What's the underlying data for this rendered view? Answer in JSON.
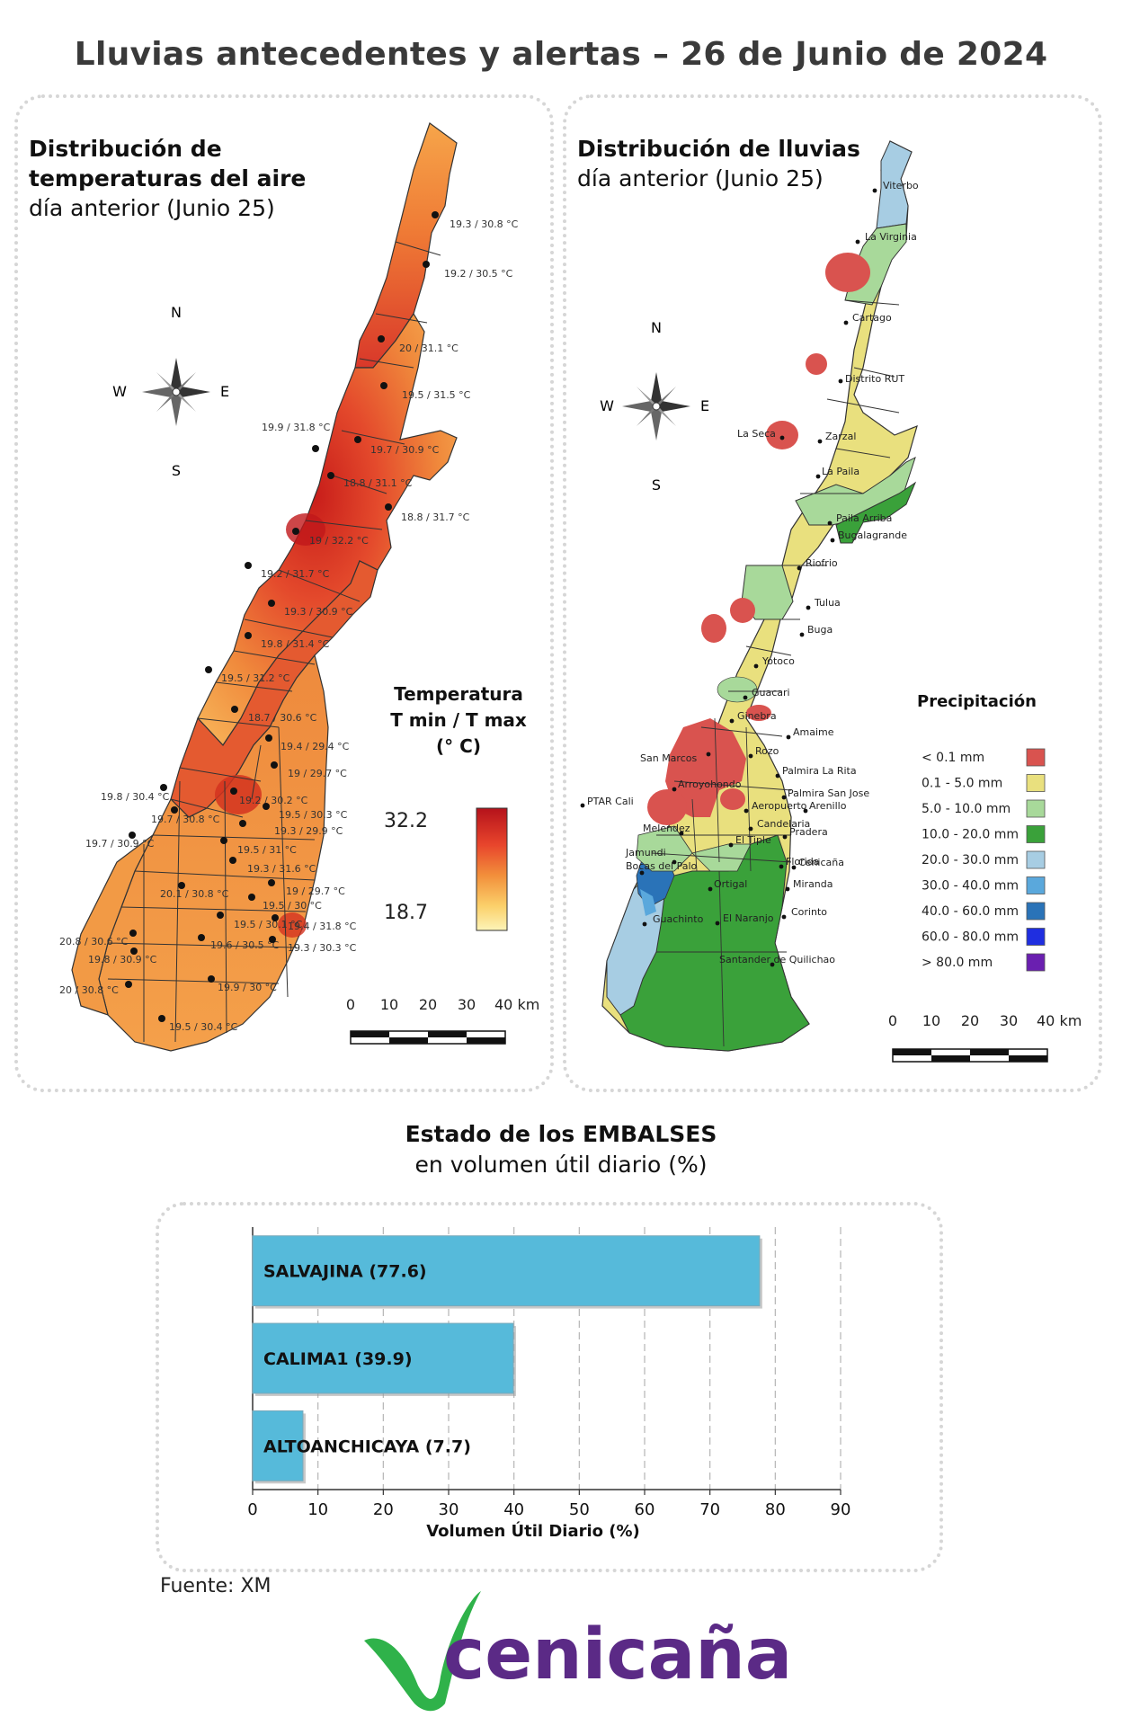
{
  "title": "Lluvias antecedentes y alertas – 26 de Junio de 2024",
  "temp_panel": {
    "title_bold_1": "Distribución de",
    "title_bold_2": "temperaturas del aire",
    "subtitle": "día anterior (Junio 25)",
    "legend_title_1": "Temperatura",
    "legend_title_2": "T min / T max",
    "legend_title_3": "(° C)",
    "legend_max": "32.2",
    "legend_min": "18.7",
    "gradient_colors": [
      "#b5121b",
      "#e8452c",
      "#f28f3b",
      "#fbd06a",
      "#fdf4b8"
    ],
    "scale_labels": [
      "0",
      "10",
      "20",
      "30",
      "40 km"
    ],
    "stations": [
      "19.3 / 30.8 °C",
      "19.2 / 30.5 °C",
      "20 / 31.1 °C",
      "19.5 / 31.5 °C",
      "19.9 / 31.8 °C",
      "19.7 / 30.9 °C",
      "18.8 / 31.1 °C",
      "18.8 / 31.7 °C",
      "19 / 32.2 °C",
      "19.2 / 31.7 °C",
      "19.3 / 30.9 °C",
      "19.8 / 31.4 °C",
      "19.5 / 31.2 °C",
      "18.7 / 30.6 °C",
      "19.4 / 29.4 °C",
      "19 / 29.7 °C",
      "19.8 / 30.4 °C",
      "19.2 / 30.2 °C",
      "19.5 / 30.3 °C",
      "19.7 / 30.8 °C",
      "19.3 / 29.9 °C",
      "19.7 / 30.9 °C",
      "19.5 / 31 °C",
      "19.3 / 31.6 °C",
      "19 / 29.7 °C",
      "20.1 / 30.8 °C",
      "19.5 / 30 °C",
      "19.5 / 30.1 °C",
      "19.4 / 31.8 °C",
      "20.8 / 30.6 °C",
      "19.6 / 30.5 °C",
      "19.3 / 30.3 °C",
      "19.8 / 30.9 °C",
      "20 / 30.8 °C",
      "19.9 / 30 °C",
      "19.5 / 30.4 °C"
    ],
    "compass": {
      "n": "N",
      "s": "S",
      "e": "E",
      "w": "W"
    }
  },
  "rain_panel": {
    "title_bold": "Distribución de lluvias",
    "subtitle": "día anterior (Junio 25)",
    "legend_title": "Precipitación",
    "legend": [
      {
        "label": "< 0.1 mm",
        "color": "#d9534f"
      },
      {
        "label": "0.1 - 5.0 mm",
        "color": "#e9e07e"
      },
      {
        "label": "5.0 - 10.0 mm",
        "color": "#a8d99a"
      },
      {
        "label": "10.0 - 20.0 mm",
        "color": "#3aa13a"
      },
      {
        "label": "20.0 - 30.0 mm",
        "color": "#a7cde3"
      },
      {
        "label": "30.0 - 40.0 mm",
        "color": "#5aa8dc"
      },
      {
        "label": "40.0 - 60.0 mm",
        "color": "#2a73b8"
      },
      {
        "label": "60.0 - 80.0 mm",
        "color": "#1f2ee0"
      },
      {
        "label": "> 80.0 mm",
        "color": "#6a1fb0"
      }
    ],
    "towns": [
      "Viterbo",
      "La Virginia",
      "Cartago",
      "Distrito RUT",
      "La Seca",
      "Zarzal",
      "La Paila",
      "Paila Arriba",
      "Bugalagrande",
      "Riofrio",
      "Tulua",
      "Buga",
      "Yotoco",
      "Guacari",
      "Ginebra",
      "Amaime",
      "San Marcos",
      "Rozo",
      "Palmira La Rita",
      "Arroyohondo",
      "Palmira San Jose",
      "PTAR Cali",
      "Aeropuerto",
      "Arenillo",
      "Candelaria",
      "Pradera",
      "Melendez",
      "El Tiple",
      "Cenicaña",
      "Florida",
      "Jamundi",
      "Bocas del Palo",
      "Ortigal",
      "Miranda",
      "Guachinto",
      "El Naranjo",
      "Corinto",
      "Santander de Quilichao"
    ],
    "scale_labels": [
      "0",
      "10",
      "20",
      "30",
      "40 km"
    ],
    "compass": {
      "n": "N",
      "s": "S",
      "e": "E",
      "w": "W"
    }
  },
  "reservoirs": {
    "title_bold": "Estado de los EMBALSES",
    "subtitle": "en volumen útil diario (%)",
    "xlabel": "Volumen Útil Diario (%)",
    "bar_color": "#56bada"
  },
  "chart_data": {
    "type": "bar",
    "orientation": "horizontal",
    "categories": [
      "SALVAJINA (77.6)",
      "CALIMA1 (39.9)",
      "ALTOANCHICAYA (7.7)"
    ],
    "values": [
      77.6,
      39.9,
      7.7
    ],
    "xlabel": "Volumen Útil Diario (%)",
    "ylabel": "",
    "xlim": [
      0,
      90
    ],
    "xticks": [
      0,
      10,
      20,
      30,
      40,
      50,
      60,
      70,
      80,
      90
    ],
    "grid": "vertical-dashed"
  },
  "source": "Fuente: XM",
  "logo": {
    "text": "cenicaña",
    "color": "#5b2a86",
    "leaf_color": "#2fb24a"
  }
}
